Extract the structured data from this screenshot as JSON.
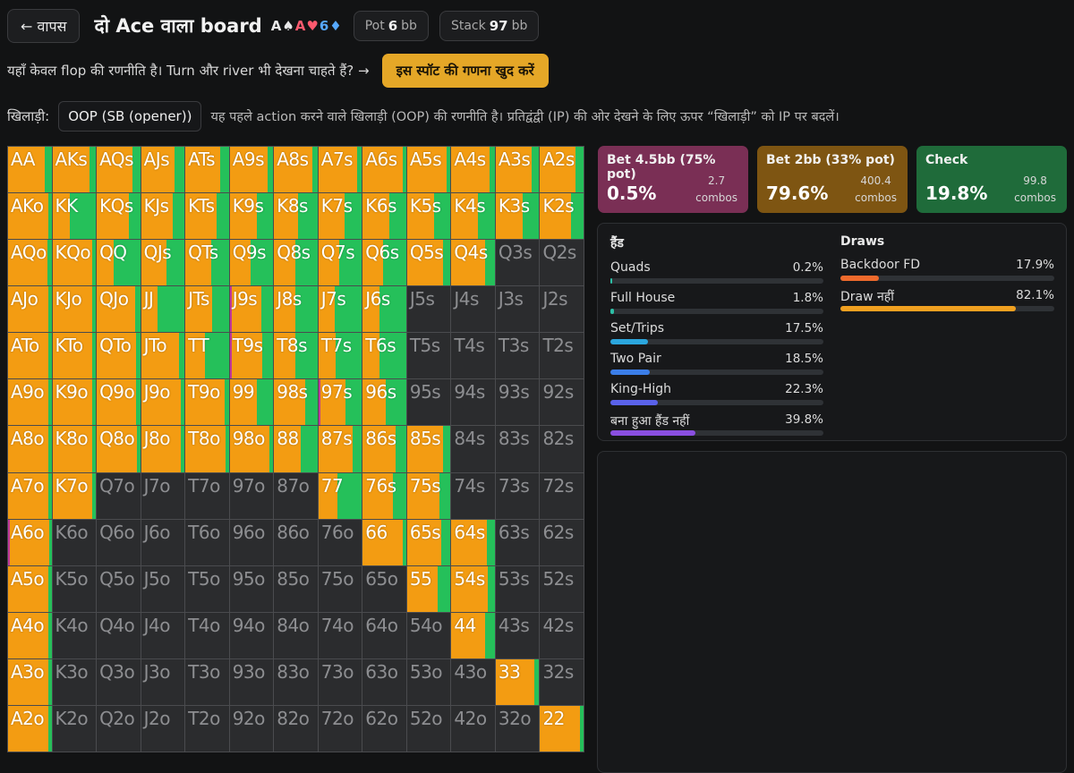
{
  "header": {
    "back_label": "← वापस",
    "title": "दो Ace वाला board",
    "board": [
      {
        "text": "A♠",
        "color": "#e8e8e8"
      },
      {
        "text": "A♥",
        "color": "#ff5a6e"
      },
      {
        "text": "6♦",
        "color": "#56a8ff"
      }
    ],
    "pot_label": "Pot",
    "pot_value": "6",
    "pot_unit": "bb",
    "stack_label": "Stack",
    "stack_value": "97",
    "stack_unit": "bb"
  },
  "notice": {
    "text": "यहाँ केवल flop की रणनीति है। Turn और river भी देखना चाहते हैं? →",
    "cta_label": "इस स्पॉट की गणना खुद करें"
  },
  "player": {
    "label": "खिलाड़ी:",
    "selected": "OOP (SB (opener))",
    "note": "यह पहले action करने वाले खिलाड़ी (OOP) की रणनीति है। प्रतिद्वंद्वी (IP) की ओर देखने के लिए ऊपर “खिलाड़ी” को IP पर बदलें।"
  },
  "actions": [
    {
      "name": "Bet 4.5bb (75% pot)",
      "pct": "0.5%",
      "combos": "2.7",
      "combos_unit": "combos",
      "color": "#7a2f55"
    },
    {
      "name": "Bet 2bb (33% pot)",
      "pct": "79.6%",
      "combos": "400.4",
      "combos_unit": "combos",
      "color": "#7e5512"
    },
    {
      "name": "Check",
      "pct": "19.8%",
      "combos": "99.8",
      "combos_unit": "combos",
      "color": "#1f6b3a"
    }
  ],
  "hands": {
    "title": "हैंड",
    "rows": [
      {
        "name": "Quads",
        "value": "0.2%",
        "frac": 0.002,
        "color": "#2dbfa6"
      },
      {
        "name": "Full House",
        "value": "1.8%",
        "frac": 0.018,
        "color": "#2dbfa6"
      },
      {
        "name": "Set/Trips",
        "value": "17.5%",
        "frac": 0.175,
        "color": "#2ba6dd"
      },
      {
        "name": "Two Pair",
        "value": "18.5%",
        "frac": 0.185,
        "color": "#3b7ee8"
      },
      {
        "name": "King-High",
        "value": "22.3%",
        "frac": 0.223,
        "color": "#5a62ea"
      },
      {
        "name": "बना हुआ हैंड नहीं",
        "value": "39.8%",
        "frac": 0.398,
        "color": "#8a4fe0"
      }
    ]
  },
  "draws": {
    "title": "Draws",
    "rows": [
      {
        "name": "Backdoor FD",
        "value": "17.9%",
        "frac": 0.179,
        "color": "#ef6a2c"
      },
      {
        "name": "Draw नहीं",
        "value": "82.1%",
        "frac": 0.821,
        "color": "#f0a020"
      }
    ]
  },
  "colors": {
    "bet_large": "#c0399a",
    "bet_small": "#f39c12",
    "check": "#25c05a",
    "fold": "#2b2c2e"
  },
  "grid": {
    "ranks": [
      "A",
      "K",
      "Q",
      "J",
      "T",
      "9",
      "8",
      "7",
      "6",
      "5",
      "4",
      "3",
      "2"
    ],
    "cells": [
      [
        [
          0,
          0.85,
          0.15
        ],
        [
          0,
          0.85,
          0.15
        ],
        [
          0,
          0.82,
          0.18
        ],
        [
          0,
          0.78,
          0.22
        ],
        [
          0,
          0.8,
          0.2
        ],
        [
          0,
          0.88,
          0.12
        ],
        [
          0,
          0.88,
          0.12
        ],
        [
          0,
          0.9,
          0.1
        ],
        [
          0,
          0.92,
          0.08
        ],
        [
          0,
          0.9,
          0.1
        ],
        [
          0,
          0.88,
          0.12
        ],
        [
          0,
          0.82,
          0.18
        ],
        [
          0,
          0.82,
          0.18
        ]
      ],
      [
        [
          0,
          0.92,
          0.08
        ],
        [
          0,
          0.4,
          0.6
        ],
        [
          0,
          0.75,
          0.25
        ],
        [
          0,
          0.72,
          0.28
        ],
        [
          0,
          0.72,
          0.28
        ],
        [
          0,
          0.62,
          0.38
        ],
        [
          0,
          0.55,
          0.45
        ],
        [
          0,
          0.6,
          0.4
        ],
        [
          0,
          0.62,
          0.38
        ],
        [
          0,
          0.62,
          0.38
        ],
        [
          0,
          0.6,
          0.4
        ],
        [
          0,
          0.62,
          0.38
        ],
        [
          0,
          0.72,
          0.28
        ]
      ],
      [
        [
          0,
          0.9,
          0.1
        ],
        [
          0,
          0.92,
          0.08
        ],
        [
          0,
          0.4,
          0.6
        ],
        [
          0,
          0.58,
          0.42
        ],
        [
          0,
          0.6,
          0.4
        ],
        [
          0,
          0.48,
          0.52
        ],
        [
          0,
          0.5,
          0.5
        ],
        [
          0,
          0.48,
          0.52
        ],
        [
          0,
          0.46,
          0.54
        ],
        [
          0,
          0.82,
          0.18
        ],
        [
          0,
          0.78,
          0.22
        ],
        [
          0,
          0,
          0
        ],
        [
          0,
          0,
          0
        ]
      ],
      [
        [
          0,
          0.92,
          0.08
        ],
        [
          0,
          0.92,
          0.08
        ],
        [
          0,
          0.88,
          0.12
        ],
        [
          0,
          0.38,
          0.62
        ],
        [
          0,
          0.62,
          0.38
        ],
        [
          0.04,
          0.68,
          0.28
        ],
        [
          0,
          0.5,
          0.5
        ],
        [
          0,
          0.38,
          0.62
        ],
        [
          0,
          0.38,
          0.62
        ],
        [
          0,
          0,
          0
        ],
        [
          0,
          0,
          0
        ],
        [
          0,
          0,
          0
        ],
        [
          0,
          0,
          0
        ]
      ],
      [
        [
          0,
          0.92,
          0.08
        ],
        [
          0,
          0.92,
          0.08
        ],
        [
          0,
          0.9,
          0.1
        ],
        [
          0,
          0.88,
          0.12
        ],
        [
          0,
          0.44,
          0.56
        ],
        [
          0.04,
          0.7,
          0.26
        ],
        [
          0,
          0.48,
          0.52
        ],
        [
          0,
          0.4,
          0.6
        ],
        [
          0,
          0.38,
          0.62
        ],
        [
          0,
          0,
          0
        ],
        [
          0,
          0,
          0
        ],
        [
          0,
          0,
          0
        ],
        [
          0,
          0,
          0
        ]
      ],
      [
        [
          0,
          0.92,
          0.08
        ],
        [
          0,
          0.92,
          0.08
        ],
        [
          0,
          0.9,
          0.1
        ],
        [
          0,
          0.92,
          0.08
        ],
        [
          0,
          0.9,
          0.1
        ],
        [
          0,
          0.62,
          0.38
        ],
        [
          0,
          0.72,
          0.28
        ],
        [
          0.04,
          0.58,
          0.38
        ],
        [
          0,
          0.52,
          0.48
        ],
        [
          0,
          0,
          0
        ],
        [
          0,
          0,
          0
        ],
        [
          0,
          0,
          0
        ],
        [
          0,
          0,
          0
        ]
      ],
      [
        [
          0,
          0.92,
          0.08
        ],
        [
          0,
          0.92,
          0.08
        ],
        [
          0,
          0.92,
          0.08
        ],
        [
          0,
          0.92,
          0.08
        ],
        [
          0,
          0.92,
          0.08
        ],
        [
          0,
          0.92,
          0.08
        ],
        [
          0,
          0.62,
          0.38
        ],
        [
          0,
          0.78,
          0.22
        ],
        [
          0,
          0.76,
          0.24
        ],
        [
          0,
          0.82,
          0.18
        ],
        [
          0,
          0,
          0
        ],
        [
          0,
          0,
          0
        ],
        [
          0,
          0,
          0
        ]
      ],
      [
        [
          0,
          0.92,
          0.08
        ],
        [
          0,
          0.92,
          0.08
        ],
        [
          0,
          0,
          0
        ],
        [
          0,
          0,
          0
        ],
        [
          0,
          0,
          0
        ],
        [
          0,
          0,
          0
        ],
        [
          0,
          0,
          0
        ],
        [
          0,
          0.44,
          0.56
        ],
        [
          0,
          0.7,
          0.3
        ],
        [
          0,
          0.75,
          0.25
        ],
        [
          0,
          0,
          0
        ],
        [
          0,
          0,
          0
        ],
        [
          0,
          0,
          0
        ]
      ],
      [
        [
          0.04,
          0.9,
          0.06
        ],
        [
          0,
          0,
          0
        ],
        [
          0,
          0,
          0
        ],
        [
          0,
          0,
          0
        ],
        [
          0,
          0,
          0
        ],
        [
          0,
          0,
          0
        ],
        [
          0,
          0,
          0
        ],
        [
          0,
          0,
          0
        ],
        [
          0,
          0.92,
          0.08
        ],
        [
          0,
          0.78,
          0.22
        ],
        [
          0,
          0.82,
          0.18
        ],
        [
          0,
          0,
          0
        ],
        [
          0,
          0,
          0
        ]
      ],
      [
        [
          0,
          0.92,
          0.08
        ],
        [
          0,
          0,
          0
        ],
        [
          0,
          0,
          0
        ],
        [
          0,
          0,
          0
        ],
        [
          0,
          0,
          0
        ],
        [
          0,
          0,
          0
        ],
        [
          0,
          0,
          0
        ],
        [
          0,
          0,
          0
        ],
        [
          0,
          0,
          0
        ],
        [
          0,
          0.7,
          0.3
        ],
        [
          0,
          0.84,
          0.16
        ],
        [
          0,
          0,
          0
        ],
        [
          0,
          0,
          0
        ]
      ],
      [
        [
          0,
          0.92,
          0.08
        ],
        [
          0,
          0,
          0
        ],
        [
          0,
          0,
          0
        ],
        [
          0,
          0,
          0
        ],
        [
          0,
          0,
          0
        ],
        [
          0,
          0,
          0
        ],
        [
          0,
          0,
          0
        ],
        [
          0,
          0,
          0
        ],
        [
          0,
          0,
          0
        ],
        [
          0,
          0,
          0
        ],
        [
          0,
          0.78,
          0.22
        ],
        [
          0,
          0,
          0
        ],
        [
          0,
          0,
          0
        ]
      ],
      [
        [
          0,
          0.92,
          0.08
        ],
        [
          0,
          0,
          0
        ],
        [
          0,
          0,
          0
        ],
        [
          0,
          0,
          0
        ],
        [
          0,
          0,
          0
        ],
        [
          0,
          0,
          0
        ],
        [
          0,
          0,
          0
        ],
        [
          0,
          0,
          0
        ],
        [
          0,
          0,
          0
        ],
        [
          0,
          0,
          0
        ],
        [
          0,
          0,
          0
        ],
        [
          0,
          0.88,
          0.12
        ],
        [
          0,
          0,
          0
        ]
      ],
      [
        [
          0,
          0.92,
          0.08
        ],
        [
          0,
          0,
          0
        ],
        [
          0,
          0,
          0
        ],
        [
          0,
          0,
          0
        ],
        [
          0,
          0,
          0
        ],
        [
          0,
          0,
          0
        ],
        [
          0,
          0,
          0
        ],
        [
          0,
          0,
          0
        ],
        [
          0,
          0,
          0
        ],
        [
          0,
          0,
          0
        ],
        [
          0,
          0,
          0
        ],
        [
          0,
          0,
          0
        ],
        [
          0,
          0.92,
          0.08
        ]
      ]
    ]
  }
}
